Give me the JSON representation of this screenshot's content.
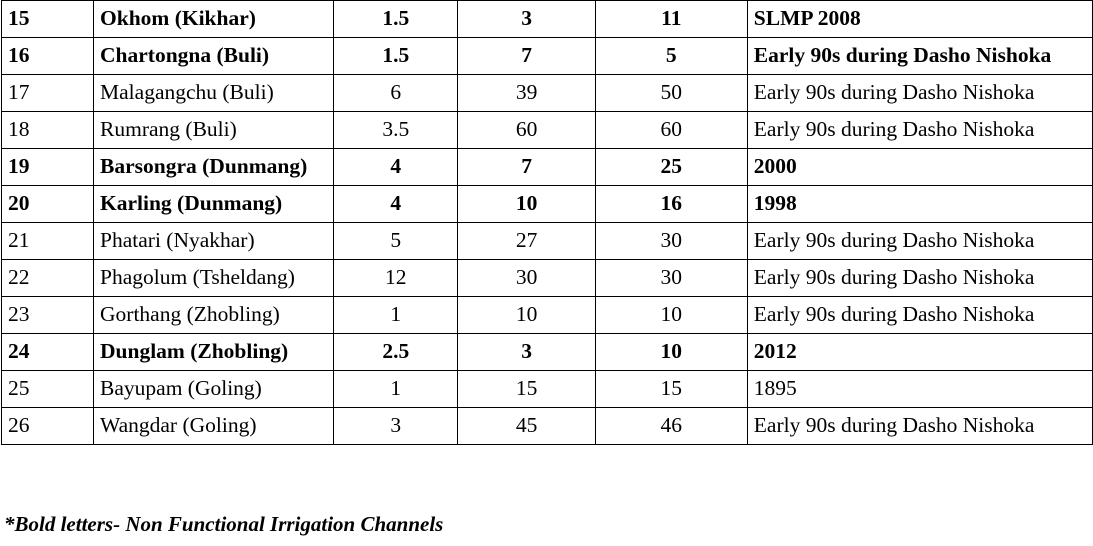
{
  "rows": [
    {
      "no": "15",
      "name": "Okhom (Kikhar)",
      "a": "1.5",
      "b": "3",
      "c": "11",
      "year": "SLMP 2008",
      "bold": true
    },
    {
      "no": "16",
      "name": "Chartongna (Buli)",
      "a": "1.5",
      "b": "7",
      "c": "5",
      "year": "Early 90s during Dasho Nishoka",
      "bold": true
    },
    {
      "no": "17",
      "name": "Malagangchu (Buli)",
      "a": "6",
      "b": "39",
      "c": "50",
      "year": "Early 90s during Dasho Nishoka",
      "bold": false
    },
    {
      "no": "18",
      "name": "Rumrang (Buli)",
      "a": "3.5",
      "b": "60",
      "c": "60",
      "year": "Early 90s during Dasho Nishoka",
      "bold": false
    },
    {
      "no": "19",
      "name": "Barsongra (Dunmang)",
      "a": "4",
      "b": "7",
      "c": "25",
      "year": "2000",
      "bold": true
    },
    {
      "no": "20",
      "name": "Karling (Dunmang)",
      "a": "4",
      "b": "10",
      "c": "16",
      "year": "1998",
      "bold": true
    },
    {
      "no": "21",
      "name": "Phatari (Nyakhar)",
      "a": "5",
      "b": "27",
      "c": "30",
      "year": "Early 90s during Dasho Nishoka",
      "bold": false
    },
    {
      "no": "22",
      "name": "Phagolum (Tsheldang)",
      "a": "12",
      "b": "30",
      "c": "30",
      "year": "Early 90s during Dasho Nishoka",
      "bold": false
    },
    {
      "no": "23",
      "name": "Gorthang (Zhobling)",
      "a": "1",
      "b": "10",
      "c": "10",
      "year": "Early 90s during Dasho Nishoka",
      "bold": false
    },
    {
      "no": "24",
      "name": "Dunglam (Zhobling)",
      "a": "2.5",
      "b": "3",
      "c": "10",
      "year": "2012",
      "bold": true
    },
    {
      "no": "25",
      "name": "Bayupam (Goling)",
      "a": "1",
      "b": "15",
      "c": "15",
      "year": "1895",
      "bold": false
    },
    {
      "no": "26",
      "name": "Wangdar (Goling)",
      "a": "3",
      "b": "45",
      "c": "46",
      "year": "Early 90s during Dasho Nishoka",
      "bold": false
    }
  ],
  "footnote": "*Bold letters- Non Functional Irrigation Channels"
}
